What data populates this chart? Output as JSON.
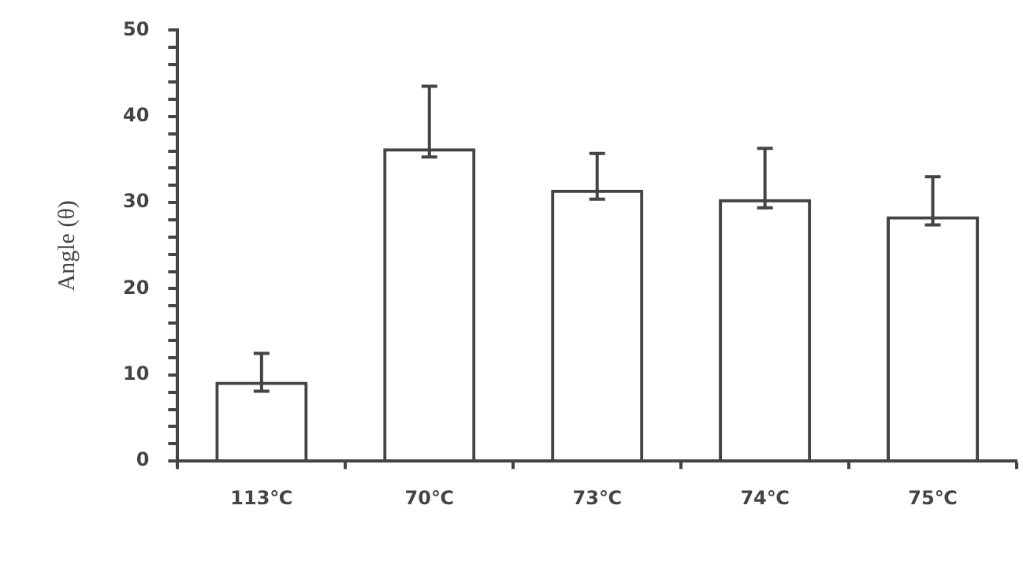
{
  "chart_data": {
    "type": "bar",
    "ylabel": "Angle (θ)",
    "categories": [
      "113℃",
      "70℃",
      "73℃",
      "74℃",
      "75℃"
    ],
    "values": [
      9.2,
      36.3,
      31.5,
      30.4,
      28.4
    ],
    "errors": [
      [
        8.1,
        12.5
      ],
      [
        35.3,
        43.5
      ],
      [
        30.4,
        35.7
      ],
      [
        29.4,
        36.3
      ],
      [
        27.4,
        33.0
      ]
    ],
    "color": "#444444",
    "ylim": [
      0,
      50
    ],
    "yticks": [
      0,
      {
        "value": 2,
        "label": null
      },
      {
        "value": 4,
        "label": null
      },
      {
        "value": 6,
        "label": null
      },
      {
        "value": 8,
        "label": null
      },
      10,
      {
        "value": 12,
        "label": null
      },
      {
        "value": 14,
        "label": null
      },
      {
        "value": 16,
        "label": null
      },
      {
        "value": 18,
        "label": null
      },
      20,
      {
        "value": 22,
        "label": null
      },
      {
        "value": 24,
        "label": null
      },
      {
        "value": 26,
        "label": null
      },
      {
        "value": 28,
        "label": null
      },
      30,
      {
        "value": 32,
        "label": null
      },
      {
        "value": 34,
        "label": null
      },
      {
        "value": 36,
        "label": null
      },
      {
        "value": 38,
        "label": null
      },
      40,
      {
        "value": 42,
        "label": null
      },
      {
        "value": 44,
        "label": null
      },
      {
        "value": 46,
        "label": null
      },
      {
        "value": 48,
        "label": null
      },
      50
    ],
    "grid": false,
    "legend": false
  }
}
